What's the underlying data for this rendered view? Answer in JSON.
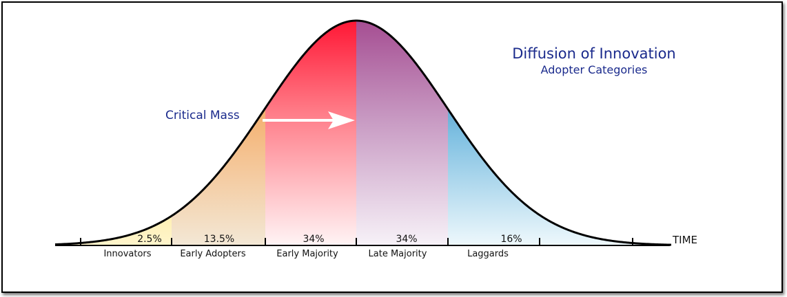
{
  "title": "Diffusion of Innovation",
  "subtitle": "Adopter Categories",
  "critical_mass_label": "Critical Mass",
  "axis_label": "TIME",
  "segments": [
    {
      "label": "Innovators",
      "percent": "2.5%",
      "color": "#f5c400"
    },
    {
      "label": "Early Adopters",
      "percent": "13.5%",
      "color": "#f28a1a"
    },
    {
      "label": "Early Majority",
      "percent": "34%",
      "color": "#ff1a2e"
    },
    {
      "label": "Late Majority",
      "percent": "34%",
      "color": "#a8448e"
    },
    {
      "label": "Laggards",
      "percent": "16%",
      "color": "#0a5fa0"
    }
  ]
}
